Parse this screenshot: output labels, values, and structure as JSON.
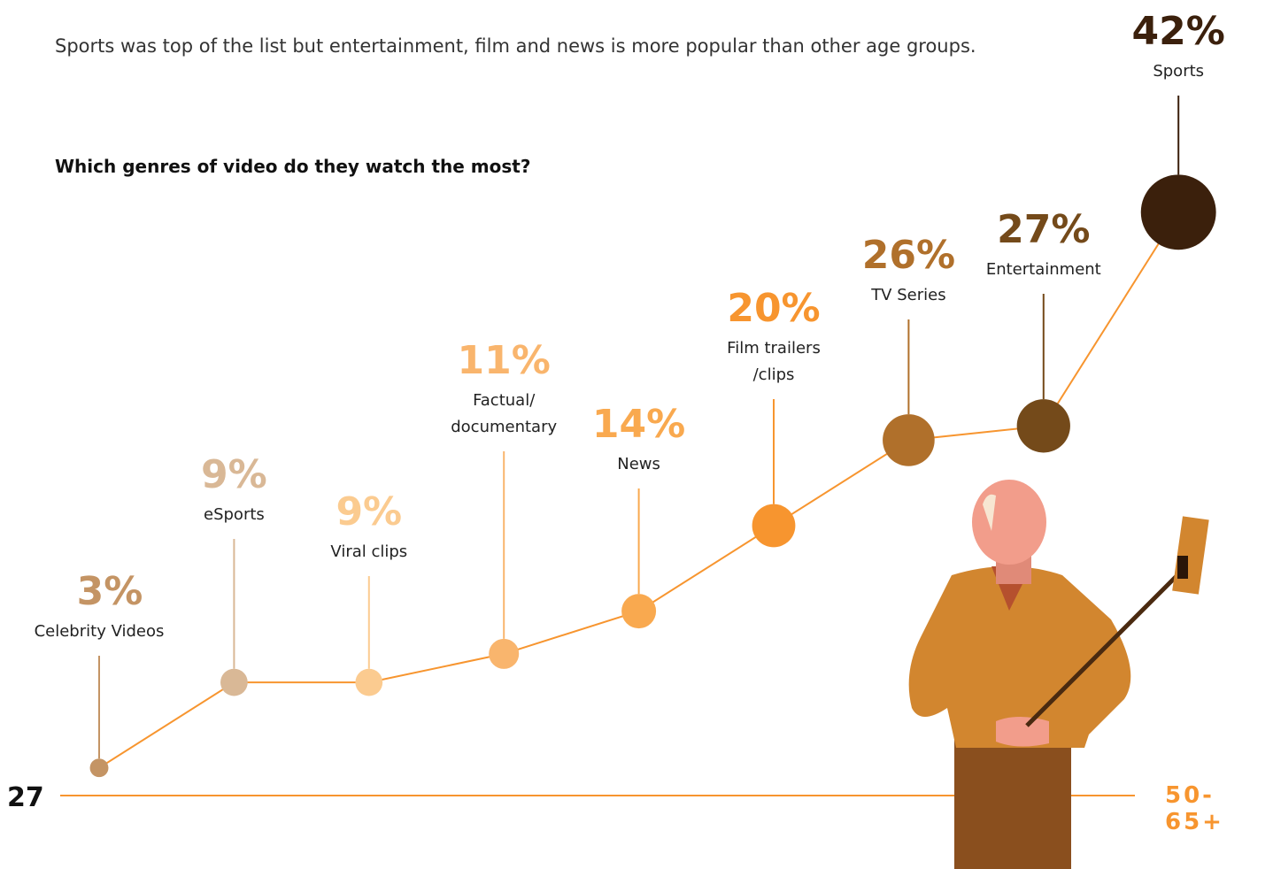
{
  "chart_data": {
    "type": "line",
    "subtitle": "Sports was top of the list but entertainment, film and news is more popular than other age groups.",
    "title": "Which genres of video do they watch the most?",
    "categories": [
      "Celebrity Videos",
      "eSports",
      "Viral clips",
      "Factual/\ndocumentary",
      "News",
      "Film trailers\n/clips",
      "TV Series",
      "Entertainment",
      "Sports"
    ],
    "values": [
      3,
      9,
      9,
      11,
      14,
      20,
      26,
      27,
      42
    ],
    "value_labels": [
      "3%",
      "9%",
      "9%",
      "11%",
      "14%",
      "20%",
      "26%",
      "27%",
      "42%"
    ],
    "colors": [
      "#c49464",
      "#d9b896",
      "#fbcb90",
      "#f9b56d",
      "#f9a94f",
      "#f7952f",
      "#b0702b",
      "#744a1a",
      "#3b200c"
    ],
    "line_color": "#f7952f",
    "start_label": "27",
    "end_label": "50-65+"
  }
}
